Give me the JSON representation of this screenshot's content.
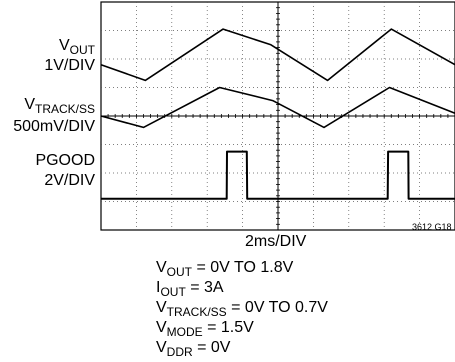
{
  "chart_data": {
    "type": "line",
    "title": "",
    "xlabel": "2ms/DIV",
    "figure_id": "3612 G18",
    "x_divisions": 10,
    "y_divisions": 8,
    "grid": true,
    "channels": [
      {
        "name_main": "V",
        "name_sub": "OUT",
        "scale": "1V/DIV",
        "unit_per_div": 1,
        "x": [
          0,
          1.25,
          3.45,
          4.8,
          6.4,
          8.2,
          10
        ],
        "y": [
          0.55,
          0,
          1.8,
          1.25,
          0,
          1.8,
          0.55
        ]
      },
      {
        "name_main": "V",
        "name_sub": "TRACK/SS",
        "scale": "500mV/DIV",
        "unit_per_div": 0.5,
        "x": [
          0,
          1.2,
          3.35,
          4.85,
          6.3,
          8.15,
          10
        ],
        "y": [
          0.2,
          0,
          0.7,
          0.47,
          0,
          0.7,
          0.25
        ]
      },
      {
        "name_main": "PGOOD",
        "name_sub": "",
        "scale": "2V/DIV",
        "unit_per_div": 2,
        "x": [
          0,
          3.55,
          3.56,
          4.12,
          4.13,
          8.1,
          8.11,
          8.68,
          8.69,
          10
        ],
        "y": [
          0,
          0,
          3.3,
          3.3,
          0,
          0,
          3.3,
          3.3,
          0,
          0
        ]
      }
    ],
    "conditions": [
      {
        "main": "V",
        "sub": "OUT",
        "rest": " = 0V TO 1.8V"
      },
      {
        "main": "I",
        "sub": "OUT",
        "rest": " = 3A"
      },
      {
        "main": "V",
        "sub": "TRACK/SS",
        "rest": " = 0V TO 0.7V"
      },
      {
        "main": "V",
        "sub": "MODE",
        "rest": " = 1.5V"
      },
      {
        "main": "V",
        "sub": "DDR",
        "rest": " = 0V"
      }
    ]
  }
}
